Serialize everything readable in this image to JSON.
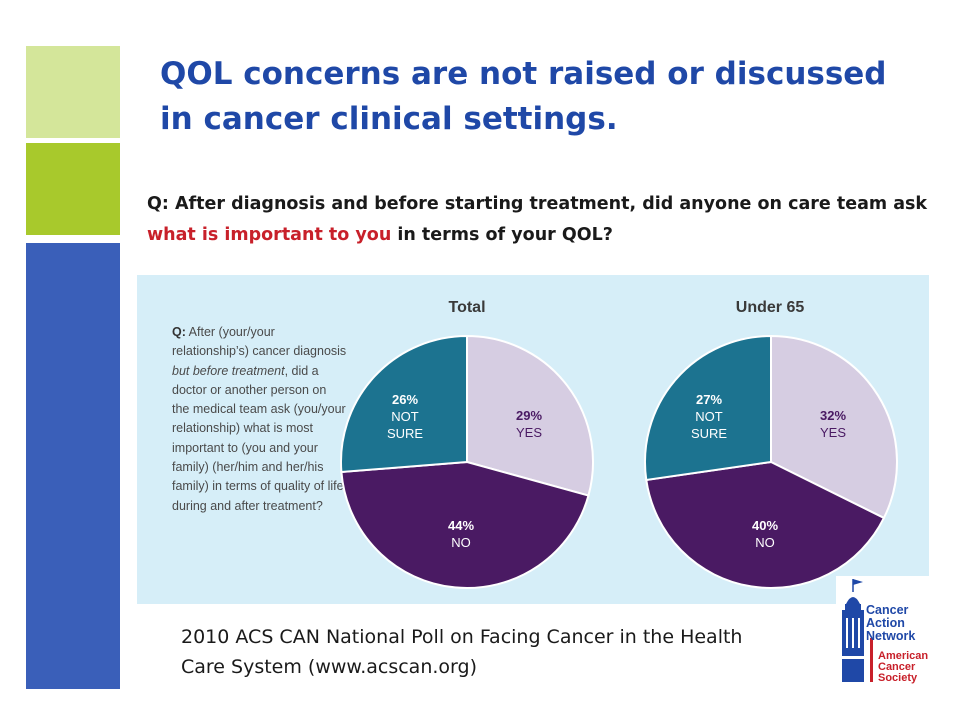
{
  "slide": {
    "title": "QOL concerns are not raised or discussed in cancer clinical settings.",
    "question_prefix": "Q:  After diagnosis and before starting treatment, did anyone on care team ask ",
    "question_highlight": "what is important to you",
    "question_suffix": " in terms of your QOL?",
    "source": "2010 ACS CAN National Poll on Facing Cancer in the Health Care System (www.acscan.org)"
  },
  "panel": {
    "q_label": "Q:",
    "q_1": " After (your/your relationship’s) cancer diagnosis ",
    "q_italic": "but before treatment",
    "q_2": ", did a doctor or another person on the medical team ask (you/your relationship) what is most important to (you and your family) (her/him and her/his family) in terms of quality of life during and after treatment?"
  },
  "chart_data": [
    {
      "type": "pie",
      "title": "Total",
      "slices": [
        {
          "label": "YES",
          "value": 29,
          "color": "#d6cde2"
        },
        {
          "label": "NO",
          "value": 44,
          "color": "#4a1a63"
        },
        {
          "label": "NOT SURE",
          "value": 26,
          "color": "#1c7390"
        }
      ]
    },
    {
      "type": "pie",
      "title": "Under 65",
      "slices": [
        {
          "label": "YES",
          "value": 32,
          "color": "#d6cde2"
        },
        {
          "label": "NO",
          "value": 40,
          "color": "#4a1a63"
        },
        {
          "label": "NOT SURE",
          "value": 27,
          "color": "#1c7390"
        }
      ]
    }
  ],
  "logo": {
    "name_1": "Cancer Action",
    "name_2": "Network",
    "sub": "American Cancer Society",
    "icons": [
      "flag-icon",
      "capitol-dome-icon"
    ],
    "colors": {
      "blue": "#1f48a7",
      "red": "#c8202a"
    }
  }
}
